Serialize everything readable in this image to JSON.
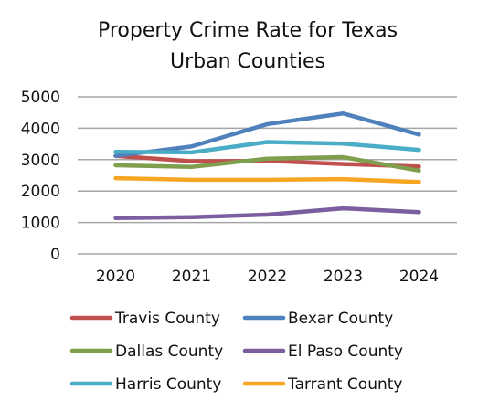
{
  "chart_data": {
    "type": "line",
    "title_lines": [
      "Property Crime Rate for Texas",
      "Urban Counties"
    ],
    "x": [
      "2020",
      "2021",
      "2022",
      "2023",
      "2024"
    ],
    "yticks": [
      "0",
      "1000",
      "2000",
      "3000",
      "4000",
      "5000"
    ],
    "ylim": [
      0,
      5000
    ],
    "grid": true,
    "legend_position": "bottom",
    "series": [
      {
        "name": "Travis County",
        "color": "#c0504d",
        "values": [
          3120,
          2950,
          2960,
          2860,
          2780
        ]
      },
      {
        "name": "Bexar County",
        "color": "#4f81bd",
        "values": [
          3120,
          3420,
          4130,
          4470,
          3800
        ]
      },
      {
        "name": "Dallas County",
        "color": "#7f9f4e",
        "values": [
          2820,
          2770,
          3030,
          3080,
          2650
        ]
      },
      {
        "name": "El Paso County",
        "color": "#7b5ea0",
        "values": [
          1140,
          1170,
          1250,
          1450,
          1330
        ]
      },
      {
        "name": "Harris County",
        "color": "#4bacc6",
        "values": [
          3250,
          3230,
          3560,
          3510,
          3310
        ]
      },
      {
        "name": "Tarrant County",
        "color": "#f6a623",
        "values": [
          2410,
          2360,
          2360,
          2380,
          2290
        ]
      }
    ]
  }
}
